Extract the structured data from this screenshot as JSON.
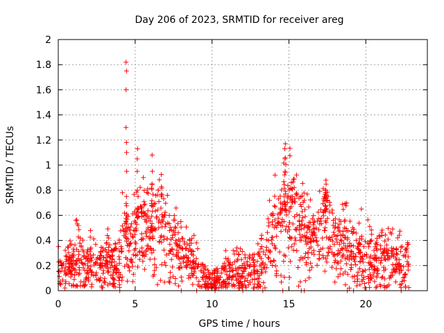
{
  "chart_data": {
    "type": "scatter",
    "title": "Day 206 of 2023, SRMTID for receiver areg",
    "xlabel": "GPS time / hours",
    "ylabel": "SRMTID / TECUs",
    "xlim": [
      0,
      24
    ],
    "ylim": [
      0,
      2
    ],
    "xticks": [
      0,
      5,
      10,
      15,
      20
    ],
    "yticks": [
      0,
      0.2,
      0.4,
      0.6,
      0.8,
      1,
      1.2,
      1.4,
      1.6,
      1.8,
      2
    ],
    "grid": true,
    "marker": "plus",
    "series_color": "#ff0000",
    "trend": [
      [
        0,
        0.17
      ],
      [
        0.5,
        0.2
      ],
      [
        1.0,
        0.21
      ],
      [
        1.4,
        0.3
      ],
      [
        1.8,
        0.2
      ],
      [
        2.3,
        0.24
      ],
      [
        2.8,
        0.19
      ],
      [
        3.2,
        0.24
      ],
      [
        3.6,
        0.18
      ],
      [
        4.0,
        0.2
      ],
      [
        4.3,
        0.5
      ],
      [
        4.5,
        0.35
      ],
      [
        5.0,
        0.45
      ],
      [
        5.5,
        0.55
      ],
      [
        6.0,
        0.45
      ],
      [
        6.5,
        0.55
      ],
      [
        7.0,
        0.45
      ],
      [
        7.5,
        0.35
      ],
      [
        8.0,
        0.3
      ],
      [
        8.5,
        0.25
      ],
      [
        9.0,
        0.18
      ],
      [
        9.5,
        0.08
      ],
      [
        10.0,
        0.06
      ],
      [
        10.5,
        0.08
      ],
      [
        11.0,
        0.14
      ],
      [
        11.5,
        0.15
      ],
      [
        12.0,
        0.14
      ],
      [
        12.5,
        0.16
      ],
      [
        13.0,
        0.2
      ],
      [
        13.5,
        0.3
      ],
      [
        14.0,
        0.45
      ],
      [
        14.5,
        0.55
      ],
      [
        15.0,
        0.6
      ],
      [
        15.5,
        0.6
      ],
      [
        16.0,
        0.5
      ],
      [
        16.5,
        0.38
      ],
      [
        17.0,
        0.42
      ],
      [
        17.4,
        0.6
      ],
      [
        17.8,
        0.45
      ],
      [
        18.2,
        0.35
      ],
      [
        18.6,
        0.4
      ],
      [
        19.0,
        0.35
      ],
      [
        19.4,
        0.35
      ],
      [
        19.8,
        0.3
      ],
      [
        20.2,
        0.25
      ],
      [
        20.6,
        0.22
      ],
      [
        21.0,
        0.28
      ],
      [
        21.5,
        0.28
      ],
      [
        22.0,
        0.22
      ],
      [
        22.5,
        0.2
      ],
      [
        22.8,
        0.24
      ]
    ],
    "spikes": [
      {
        "x": 4.42,
        "values": [
          0.75,
          0.95,
          1.1,
          1.18,
          1.3,
          1.6,
          1.75,
          1.82
        ]
      },
      {
        "x": 5.15,
        "values": [
          0.8,
          0.95,
          1.05,
          1.13
        ]
      },
      {
        "x": 6.1,
        "values": [
          0.85,
          0.95,
          1.08
        ]
      },
      {
        "x": 14.75,
        "values": [
          0.95,
          1.05,
          1.13,
          1.17
        ]
      },
      {
        "x": 17.4,
        "values": [
          0.8,
          0.88
        ]
      }
    ],
    "zero_points": [
      4.0,
      8.0,
      9.0,
      10.2,
      12.0,
      13.3,
      14.6,
      15.8,
      16.0,
      18.8,
      19.2,
      22.3
    ]
  }
}
